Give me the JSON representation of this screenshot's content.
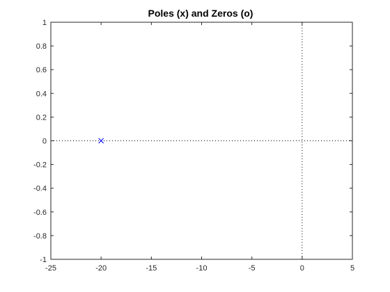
{
  "chart_data": {
    "type": "scatter",
    "title": "Poles (x) and Zeros (o)",
    "xlabel": "",
    "ylabel": "",
    "xlim": [
      -25,
      5
    ],
    "ylim": [
      -1,
      1
    ],
    "xticks": [
      -25,
      -20,
      -15,
      -10,
      -5,
      0,
      5
    ],
    "yticks": [
      -1,
      -0.8,
      -0.6,
      -0.4,
      -0.2,
      0,
      0.2,
      0.4,
      0.6,
      0.8,
      1
    ],
    "grid": false,
    "legend": "none",
    "reference_lines": {
      "x": 0,
      "y": 0,
      "color": "#000000",
      "style": "dotted"
    },
    "series": [
      {
        "marker": "x",
        "color": "#0000ff",
        "points": [
          {
            "x": -20,
            "y": 0
          }
        ]
      },
      {
        "marker": "o",
        "color": "#0000ff",
        "points": []
      }
    ]
  }
}
